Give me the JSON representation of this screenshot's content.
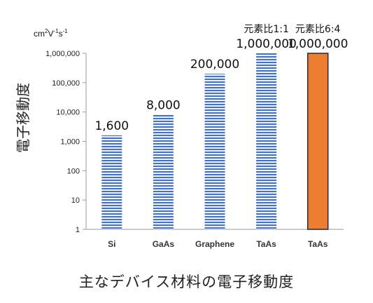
{
  "chart_data": {
    "type": "bar",
    "y_scale": "log",
    "ylim": [
      1,
      1000000
    ],
    "unit_label": "cm2V-1s-1",
    "unit_parts": {
      "base1": "cm",
      "sup1": "2",
      "base2": "V",
      "sup2": "-1",
      "base3": "s",
      "sup3": "-1"
    },
    "ylabel": "電子移動度",
    "y_ticks": [
      1,
      10,
      100,
      1000,
      10000,
      100000,
      1000000
    ],
    "y_tick_labels": [
      "1",
      "10",
      "100",
      "1,000",
      "10,000",
      "100,000",
      "1,000,000"
    ],
    "categories": [
      "Si",
      "GaAs",
      "Graphene",
      "TaAs",
      "TaAs"
    ],
    "values": [
      1600,
      8000,
      200000,
      1000000,
      1000000
    ],
    "data_labels": [
      "1,600",
      "8,000",
      "200,000",
      "1,000,000",
      "1,000,000"
    ],
    "top_labels": [
      "",
      "",
      "",
      "元素比1:1",
      "元素比6:4"
    ],
    "bar_colors": [
      "#4472c4",
      "#4472c4",
      "#4472c4",
      "#4472c4",
      "#ed7d31"
    ],
    "bar_styles": [
      "striped",
      "striped",
      "striped",
      "striped",
      "solid"
    ],
    "legend": "none",
    "grid": false
  },
  "caption": "主なデバイス材料の電子移動度"
}
